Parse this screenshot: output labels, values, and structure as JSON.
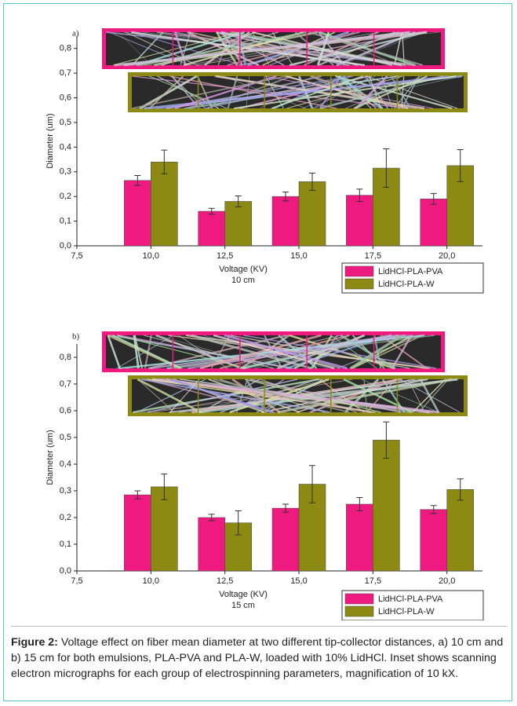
{
  "chart_data": [
    {
      "type": "bar",
      "panel": "a)",
      "xlabel": "Voltage (KV)",
      "subtitle": "10 cm",
      "ylabel": "Diameter (um)",
      "x": [
        10,
        12.5,
        15,
        17.5,
        20
      ],
      "xlim": [
        7.5,
        21.2
      ],
      "xticks": [
        {
          "value": 7.5,
          "label": "7,5"
        },
        {
          "value": 10,
          "label": "10,0"
        },
        {
          "value": 12.5,
          "label": "12,5"
        },
        {
          "value": 15,
          "label": "15,0"
        },
        {
          "value": 17.5,
          "label": "17,5"
        },
        {
          "value": 20,
          "label": "20,0"
        }
      ],
      "ylim": [
        0,
        0.85
      ],
      "yticks": [
        {
          "value": 0,
          "label": "0,0"
        },
        {
          "value": 0.1,
          "label": "0,1"
        },
        {
          "value": 0.2,
          "label": "0,2"
        },
        {
          "value": 0.3,
          "label": "0,3"
        },
        {
          "value": 0.4,
          "label": "0,4"
        },
        {
          "value": 0.5,
          "label": "0,5"
        },
        {
          "value": 0.6,
          "label": "0,6"
        },
        {
          "value": 0.7,
          "label": "0,7"
        },
        {
          "value": 0.8,
          "label": "0,8"
        }
      ],
      "legend": "lower right",
      "series": [
        {
          "name": "LidHCl-PLA-PVA",
          "color": "#ee1a80",
          "values": [
            0.265,
            0.14,
            0.2,
            0.205,
            0.19
          ],
          "errors": [
            0.02,
            0.012,
            0.018,
            0.025,
            0.022
          ]
        },
        {
          "name": "LidHCl-PLA-W",
          "color": "#8c8a12",
          "values": [
            0.34,
            0.18,
            0.26,
            0.315,
            0.325
          ],
          "errors": [
            0.048,
            0.022,
            0.035,
            0.078,
            0.065
          ]
        }
      ]
    },
    {
      "type": "bar",
      "panel": "b)",
      "xlabel": "Voltage (KV)",
      "subtitle": "15 cm",
      "ylabel": "Diameter (um)",
      "x": [
        10,
        12.5,
        15,
        17.5,
        20
      ],
      "xlim": [
        7.5,
        21.2
      ],
      "xticks": [
        {
          "value": 7.5,
          "label": "7,5"
        },
        {
          "value": 10,
          "label": "10,0"
        },
        {
          "value": 12.5,
          "label": "12,5"
        },
        {
          "value": 15,
          "label": "15,0"
        },
        {
          "value": 17.5,
          "label": "17,5"
        },
        {
          "value": 20,
          "label": "20,0"
        }
      ],
      "ylim": [
        0,
        0.85
      ],
      "yticks": [
        {
          "value": 0,
          "label": "0,0"
        },
        {
          "value": 0.1,
          "label": "0,1"
        },
        {
          "value": 0.2,
          "label": "0,2"
        },
        {
          "value": 0.3,
          "label": "0,3"
        },
        {
          "value": 0.4,
          "label": "0,4"
        },
        {
          "value": 0.5,
          "label": "0,5"
        },
        {
          "value": 0.6,
          "label": "0,6"
        },
        {
          "value": 0.7,
          "label": "0,7"
        },
        {
          "value": 0.8,
          "label": "0,8"
        }
      ],
      "legend": "lower right",
      "series": [
        {
          "name": "LidHCl-PLA-PVA",
          "color": "#ee1a80",
          "values": [
            0.285,
            0.2,
            0.235,
            0.25,
            0.23
          ],
          "errors": [
            0.015,
            0.012,
            0.015,
            0.025,
            0.015
          ]
        },
        {
          "name": "LidHCl-PLA-W",
          "color": "#8c8a12",
          "values": [
            0.315,
            0.18,
            0.325,
            0.49,
            0.305
          ],
          "errors": [
            0.048,
            0.045,
            0.07,
            0.068,
            0.04
          ]
        }
      ]
    }
  ],
  "caption": {
    "label": "Figure 2:",
    "text": " Voltage effect on fiber mean diameter at two different tip-collector distances, a) 10 cm and b) 15 cm for both emulsions, PLA-PVA and PLA-W, loaded with 10% LidHCl. Inset shows scanning electron micrographs for each group of electrospinning parameters, magnification of 10 kX."
  }
}
